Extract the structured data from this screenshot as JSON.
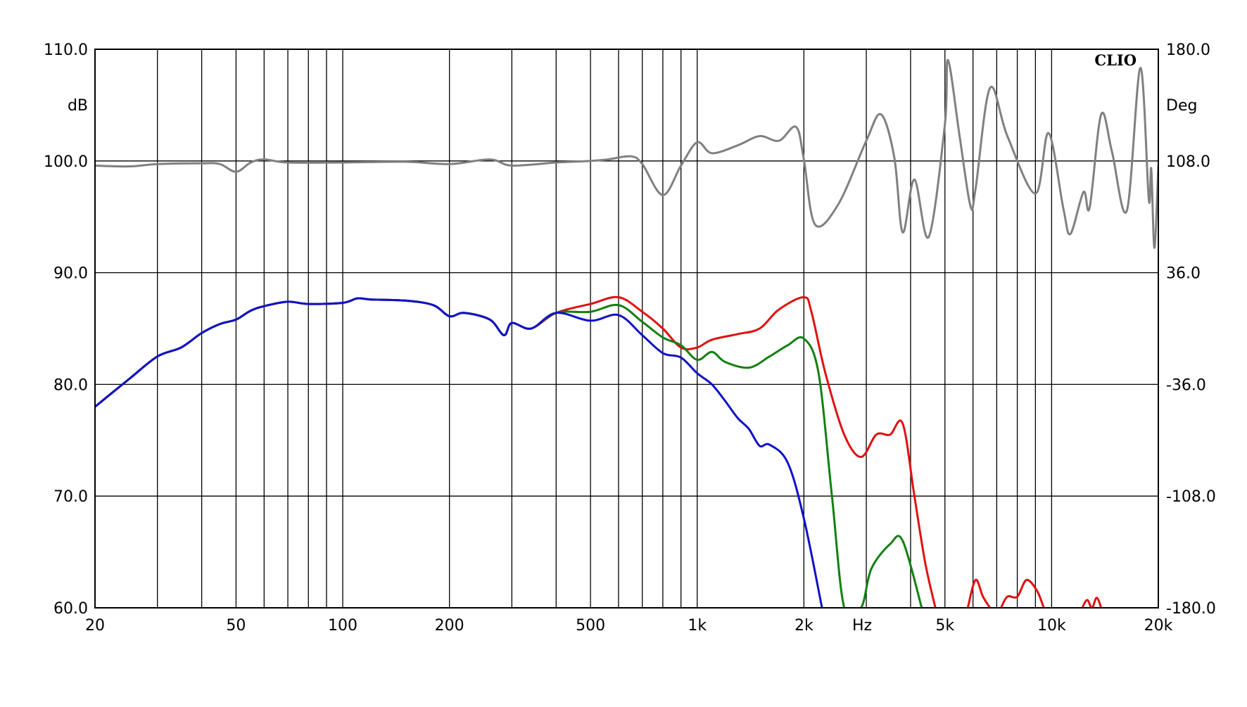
{
  "chart_data": {
    "type": "line",
    "brand": "CLIO",
    "xlabel": "Hz",
    "ylabel_left": "dB",
    "ylabel_right": "Deg",
    "xscale": "log",
    "xlim": [
      20,
      20000
    ],
    "ylim_left": [
      60,
      110
    ],
    "ylim_right": [
      -180,
      180
    ],
    "grid": true,
    "x_tick_labels": [
      {
        "value": 20,
        "label": "20"
      },
      {
        "value": 50,
        "label": "50"
      },
      {
        "value": 100,
        "label": "100"
      },
      {
        "value": 200,
        "label": "200"
      },
      {
        "value": 500,
        "label": "500"
      },
      {
        "value": 1000,
        "label": "1k"
      },
      {
        "value": 2000,
        "label": "2k"
      },
      {
        "value": 5000,
        "label": "5k"
      },
      {
        "value": 10000,
        "label": "10k"
      },
      {
        "value": 20000,
        "label": "20k"
      }
    ],
    "x_gridlines": [
      30,
      40,
      50,
      60,
      70,
      80,
      90,
      100,
      200,
      300,
      400,
      500,
      600,
      700,
      800,
      900,
      1000,
      2000,
      3000,
      4000,
      5000,
      6000,
      7000,
      8000,
      9000,
      10000
    ],
    "y_tick_labels_left": [
      "110.0",
      "100.0",
      "90.0",
      "80.0",
      "70.0",
      "60.0"
    ],
    "y_tick_values_left": [
      110,
      100,
      90,
      80,
      70,
      60
    ],
    "y_tick_labels_right": [
      "180.0",
      "108.0",
      "36.0",
      "-36.0",
      "-108.0",
      "-180.0"
    ],
    "y_tick_values_right": [
      180,
      108,
      36,
      -36,
      -108,
      -180
    ],
    "series": [
      {
        "axis": "right",
        "color": "#808080",
        "points": [
          [
            20,
            105
          ],
          [
            25,
            104.5
          ],
          [
            30,
            106
          ],
          [
            40,
            106.5
          ],
          [
            45,
            106
          ],
          [
            50,
            101
          ],
          [
            55,
            107
          ],
          [
            60,
            109
          ],
          [
            70,
            107
          ],
          [
            100,
            107
          ],
          [
            150,
            107.5
          ],
          [
            200,
            106
          ],
          [
            260,
            109
          ],
          [
            300,
            105
          ],
          [
            400,
            107
          ],
          [
            500,
            108
          ],
          [
            560,
            109
          ],
          [
            650,
            111
          ],
          [
            700,
            106
          ],
          [
            800,
            86
          ],
          [
            900,
            105
          ],
          [
            1000,
            120
          ],
          [
            1100,
            113
          ],
          [
            1300,
            118
          ],
          [
            1500,
            124
          ],
          [
            1700,
            121
          ],
          [
            1900,
            130
          ],
          [
            2000,
            109
          ],
          [
            2150,
            67
          ],
          [
            2500,
            80
          ],
          [
            3000,
            121
          ],
          [
            3300,
            138
          ],
          [
            3600,
            110
          ],
          [
            3800,
            62
          ],
          [
            4100,
            96
          ],
          [
            4500,
            59
          ],
          [
            5000,
            132
          ],
          [
            5100,
            173
          ],
          [
            5500,
            124
          ],
          [
            5900,
            79
          ],
          [
            6100,
            90
          ],
          [
            6700,
            155
          ],
          [
            7500,
            124
          ],
          [
            9000,
            87
          ],
          [
            9800,
            126
          ],
          [
            10800,
            77
          ],
          [
            11300,
            61
          ],
          [
            12300,
            88
          ],
          [
            12800,
            78
          ],
          [
            13800,
            138
          ],
          [
            14800,
            114
          ],
          [
            16300,
            76
          ],
          [
            17800,
            168
          ],
          [
            18800,
            83
          ],
          [
            19100,
            103
          ],
          [
            19500,
            52
          ],
          [
            20000,
            105
          ]
        ]
      },
      {
        "axis": "left",
        "color": "#e01010",
        "points": [
          [
            20,
            78
          ],
          [
            25,
            80.5
          ],
          [
            30,
            82.5
          ],
          [
            35,
            83.3
          ],
          [
            40,
            84.6
          ],
          [
            45,
            85.4
          ],
          [
            50,
            85.8
          ],
          [
            55,
            86.6
          ],
          [
            60,
            87
          ],
          [
            70,
            87.4
          ],
          [
            80,
            87.2
          ],
          [
            100,
            87.3
          ],
          [
            110,
            87.7
          ],
          [
            120,
            87.6
          ],
          [
            150,
            87.5
          ],
          [
            180,
            87.1
          ],
          [
            200,
            86.1
          ],
          [
            220,
            86.4
          ],
          [
            260,
            85.8
          ],
          [
            285,
            84.4
          ],
          [
            300,
            85.5
          ],
          [
            340,
            85
          ],
          [
            400,
            86.4
          ],
          [
            500,
            87.2
          ],
          [
            600,
            87.8
          ],
          [
            700,
            86.5
          ],
          [
            800,
            85
          ],
          [
            900,
            83.3
          ],
          [
            1000,
            83.3
          ],
          [
            1100,
            84
          ],
          [
            1300,
            84.5
          ],
          [
            1500,
            85
          ],
          [
            1700,
            86.7
          ],
          [
            2000,
            87.8
          ],
          [
            2100,
            86.5
          ],
          [
            2300,
            81
          ],
          [
            2600,
            75.5
          ],
          [
            2900,
            73.5
          ],
          [
            3200,
            75.5
          ],
          [
            3500,
            75.5
          ],
          [
            3800,
            76.5
          ],
          [
            4100,
            70
          ],
          [
            4400,
            64
          ],
          [
            4700,
            60
          ]
        ]
      },
      {
        "axis": "left",
        "color": "#108010",
        "points": [
          [
            20,
            78
          ],
          [
            25,
            80.5
          ],
          [
            30,
            82.5
          ],
          [
            35,
            83.3
          ],
          [
            40,
            84.6
          ],
          [
            45,
            85.4
          ],
          [
            50,
            85.8
          ],
          [
            55,
            86.6
          ],
          [
            60,
            87
          ],
          [
            70,
            87.4
          ],
          [
            80,
            87.2
          ],
          [
            100,
            87.3
          ],
          [
            110,
            87.7
          ],
          [
            120,
            87.6
          ],
          [
            150,
            87.5
          ],
          [
            180,
            87.1
          ],
          [
            200,
            86.1
          ],
          [
            220,
            86.4
          ],
          [
            260,
            85.8
          ],
          [
            285,
            84.4
          ],
          [
            300,
            85.5
          ],
          [
            340,
            85
          ],
          [
            400,
            86.4
          ],
          [
            500,
            86.5
          ],
          [
            600,
            87.1
          ],
          [
            700,
            85.6
          ],
          [
            800,
            84.2
          ],
          [
            900,
            83.5
          ],
          [
            1000,
            82.2
          ],
          [
            1100,
            82.9
          ],
          [
            1200,
            82
          ],
          [
            1400,
            81.5
          ],
          [
            1600,
            82.5
          ],
          [
            1800,
            83.5
          ],
          [
            2000,
            84.1
          ],
          [
            2200,
            81
          ],
          [
            2400,
            70
          ],
          [
            2600,
            60
          ],
          [
            2900,
            60
          ],
          [
            3100,
            63.5
          ],
          [
            3500,
            65.7
          ],
          [
            3800,
            66
          ],
          [
            4300,
            60
          ]
        ]
      },
      {
        "axis": "left",
        "color": "#1010c8",
        "points": [
          [
            20,
            78
          ],
          [
            25,
            80.5
          ],
          [
            30,
            82.5
          ],
          [
            35,
            83.3
          ],
          [
            40,
            84.6
          ],
          [
            45,
            85.4
          ],
          [
            50,
            85.8
          ],
          [
            55,
            86.6
          ],
          [
            60,
            87
          ],
          [
            70,
            87.4
          ],
          [
            80,
            87.2
          ],
          [
            100,
            87.3
          ],
          [
            110,
            87.7
          ],
          [
            120,
            87.6
          ],
          [
            150,
            87.5
          ],
          [
            180,
            87.1
          ],
          [
            200,
            86.1
          ],
          [
            220,
            86.4
          ],
          [
            260,
            85.8
          ],
          [
            285,
            84.4
          ],
          [
            300,
            85.5
          ],
          [
            340,
            85
          ],
          [
            400,
            86.4
          ],
          [
            500,
            85.7
          ],
          [
            600,
            86.2
          ],
          [
            700,
            84.4
          ],
          [
            800,
            82.8
          ],
          [
            900,
            82.4
          ],
          [
            1000,
            81
          ],
          [
            1100,
            80
          ],
          [
            1200,
            78.5
          ],
          [
            1300,
            77
          ],
          [
            1400,
            76
          ],
          [
            1500,
            74.5
          ],
          [
            1600,
            74.6
          ],
          [
            1800,
            73
          ],
          [
            2000,
            68
          ],
          [
            2250,
            60
          ]
        ]
      },
      {
        "axis": "left",
        "color": "#e01010",
        "points": [
          [
            5800,
            60
          ],
          [
            6100,
            62.5
          ],
          [
            6400,
            61
          ],
          [
            6700,
            60
          ]
        ]
      },
      {
        "axis": "left",
        "color": "#e01010",
        "points": [
          [
            7200,
            60
          ],
          [
            7500,
            61
          ],
          [
            8000,
            61
          ],
          [
            8500,
            62.5
          ],
          [
            9100,
            61.5
          ],
          [
            9500,
            60
          ]
        ]
      },
      {
        "axis": "left",
        "color": "#e01010",
        "points": [
          [
            12200,
            60
          ],
          [
            12600,
            60.7
          ],
          [
            13000,
            60
          ],
          [
            13400,
            60.9
          ],
          [
            13800,
            60
          ]
        ]
      }
    ]
  }
}
